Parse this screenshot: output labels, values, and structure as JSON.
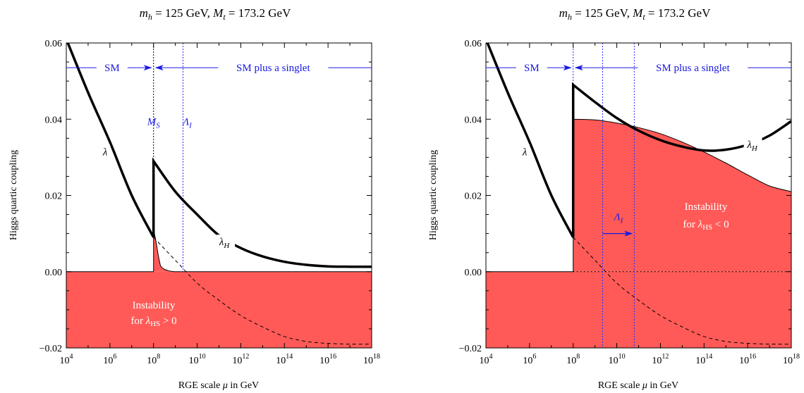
{
  "chart_data": [
    {
      "type": "line",
      "title": "m_h = 125 GeV, M_t = 173.2 GeV",
      "title_parts": {
        "mh": "m",
        "mh_sub": "h",
        "mh_val": " = 125 GeV, ",
        "mt": "M",
        "mt_sub": "t",
        "mt_val": " = 173.2 GeV"
      },
      "xlabel": "RGE scale μ in GeV",
      "xlabel_parts": {
        "pre": "RGE scale ",
        "mu": "μ",
        "post": " in GeV"
      },
      "ylabel": "Higgs quartic coupling",
      "x_scale": "log10",
      "xlim": [
        10000.0,
        1e+18
      ],
      "ylim": [
        -0.02,
        0.06
      ],
      "xticks": [
        {
          "base": "10",
          "exp": "4"
        },
        {
          "base": "10",
          "exp": "6"
        },
        {
          "base": "10",
          "exp": "8"
        },
        {
          "base": "10",
          "exp": "10"
        },
        {
          "base": "10",
          "exp": "12"
        },
        {
          "base": "10",
          "exp": "14"
        },
        {
          "base": "10",
          "exp": "16"
        },
        {
          "base": "10",
          "exp": "18"
        }
      ],
      "yticks": [
        "0.06",
        "0.04",
        "0.02",
        "0.00",
        "−0.02"
      ],
      "regions": {
        "sm": "SM",
        "singlet": "SM plus a singlet"
      },
      "markers": {
        "ms": "M",
        "ms_sub": "S",
        "lambda_i": "Λ",
        "lambda_i_sub": "I"
      },
      "curve_labels": {
        "lambda": "λ",
        "lambda_h": "λ",
        "lambda_h_sub": "H"
      },
      "instability": {
        "line1": "Instability",
        "line2_pre": "for ",
        "lambda": "λ",
        "sub": "HS",
        "cond": " > 0"
      },
      "series": [
        {
          "style": "thick-black",
          "points": [
            [
              10000.0,
              0.061
            ],
            [
              100000.0,
              0.047
            ],
            [
              1000000.0,
              0.034
            ],
            [
              10000000.0,
              0.02
            ],
            [
              100000000.0,
              0.009
            ],
            [
              100000000.0,
              0.029
            ],
            [
              1000000000.0,
              0.021
            ],
            [
              10000000000.0,
              0.015
            ],
            [
              100000000000.0,
              0.0095
            ],
            [
              1000000000000.0,
              0.0062
            ],
            [
              10000000000000.0,
              0.004
            ],
            [
              100000000000000.0,
              0.0026
            ],
            [
              1000000000000000.0,
              0.0018
            ],
            [
              1e+16,
              0.0014
            ],
            [
              1e+17,
              0.0013
            ],
            [
              1e+18,
              0.0013
            ]
          ]
        },
        {
          "style": "dashed-black",
          "points": [
            [
              100000000.0,
              0.009
            ],
            [
              1000000000.0,
              0.003
            ],
            [
              10000000000.0,
              -0.003
            ],
            [
              100000000000.0,
              -0.0075
            ],
            [
              1000000000000.0,
              -0.0115
            ],
            [
              10000000000000.0,
              -0.0145
            ],
            [
              100000000000000.0,
              -0.017
            ],
            [
              1000000000000000.0,
              -0.0183
            ],
            [
              1e+16,
              -0.0188
            ],
            [
              1e+17,
              -0.019
            ],
            [
              1e+18,
              -0.019
            ]
          ]
        }
      ],
      "red_fill_color": "#ff5a57"
    },
    {
      "type": "line",
      "title": "m_h = 125 GeV, M_t = 173.2 GeV",
      "title_parts": {
        "mh": "m",
        "mh_sub": "h",
        "mh_val": " = 125 GeV, ",
        "mt": "M",
        "mt_sub": "t",
        "mt_val": " = 173.2 GeV"
      },
      "xlabel": "RGE scale μ in GeV",
      "xlabel_parts": {
        "pre": "RGE scale ",
        "mu": "μ",
        "post": " in GeV"
      },
      "ylabel": "Higgs quartic coupling",
      "x_scale": "log10",
      "xlim": [
        10000.0,
        1e+18
      ],
      "ylim": [
        -0.02,
        0.06
      ],
      "xticks": [
        {
          "base": "10",
          "exp": "4"
        },
        {
          "base": "10",
          "exp": "6"
        },
        {
          "base": "10",
          "exp": "8"
        },
        {
          "base": "10",
          "exp": "10"
        },
        {
          "base": "10",
          "exp": "12"
        },
        {
          "base": "10",
          "exp": "14"
        },
        {
          "base": "10",
          "exp": "16"
        },
        {
          "base": "10",
          "exp": "18"
        }
      ],
      "yticks": [
        "0.06",
        "0.04",
        "0.02",
        "0.00",
        "−0.02"
      ],
      "regions": {
        "sm": "SM",
        "singlet": "SM plus a singlet"
      },
      "markers": {
        "lambda_i": "Λ",
        "lambda_i_sub": "I"
      },
      "curve_labels": {
        "lambda": "λ",
        "lambda_h": "λ",
        "lambda_h_sub": "H"
      },
      "instability": {
        "line1": "Instability",
        "line2_pre": "for ",
        "lambda": "λ",
        "sub": "HS",
        "cond": " < 0"
      },
      "series": [
        {
          "style": "thick-black",
          "points": [
            [
              10000.0,
              0.061
            ],
            [
              100000.0,
              0.047
            ],
            [
              1000000.0,
              0.034
            ],
            [
              10000000.0,
              0.02
            ],
            [
              100000000.0,
              0.009
            ],
            [
              100000000.0,
              0.049
            ],
            [
              1000000000.0,
              0.0445
            ],
            [
              10000000000.0,
              0.0403
            ],
            [
              100000000000.0,
              0.037
            ],
            [
              1000000000000.0,
              0.0345
            ],
            [
              10000000000000.0,
              0.0328
            ],
            [
              100000000000000.0,
              0.0318
            ],
            [
              1000000000000000.0,
              0.032
            ],
            [
              1e+16,
              0.0333
            ],
            [
              1e+17,
              0.0357
            ],
            [
              1e+18,
              0.0395
            ]
          ]
        },
        {
          "style": "dashed-black",
          "points": [
            [
              100000000.0,
              0.009
            ],
            [
              1000000000.0,
              0.003
            ],
            [
              10000000000.0,
              -0.003
            ],
            [
              100000000000.0,
              -0.0075
            ],
            [
              1000000000000.0,
              -0.0115
            ],
            [
              10000000000000.0,
              -0.0145
            ],
            [
              100000000000000.0,
              -0.017
            ],
            [
              1000000000000000.0,
              -0.0183
            ],
            [
              1e+16,
              -0.0188
            ],
            [
              1e+17,
              -0.019
            ],
            [
              1e+18,
              -0.019
            ]
          ]
        },
        {
          "style": "thin-black-boundary",
          "points": [
            [
              100000000.0,
              0.04
            ],
            [
              1000000000.0,
              0.0398
            ],
            [
              10000000000.0,
              0.039
            ],
            [
              100000000000.0,
              0.0378
            ],
            [
              1000000000000.0,
              0.0362
            ],
            [
              10000000000000.0,
              0.034
            ],
            [
              100000000000000.0,
              0.0314
            ],
            [
              1000000000000000.0,
              0.0285
            ],
            [
              1e+16,
              0.0254
            ],
            [
              1e+17,
              0.0225
            ],
            [
              1e+18,
              0.021
            ]
          ]
        }
      ],
      "red_fill_color": "#ff5a57"
    }
  ]
}
